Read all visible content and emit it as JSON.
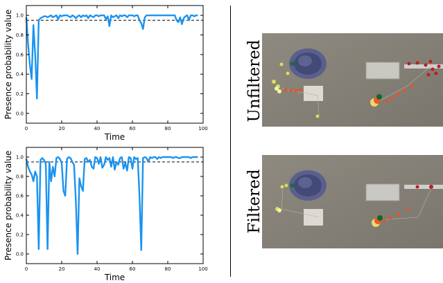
{
  "labels": {
    "unfiltered": "Unfiltered",
    "filtered": "Filtered"
  },
  "chart_data": [
    {
      "type": "line",
      "title": "",
      "xlabel": "Time",
      "ylabel": "Presence probability value",
      "xlim": [
        0,
        100
      ],
      "ylim": [
        -0.1,
        1.1
      ],
      "xticks": [
        0,
        20,
        40,
        60,
        80,
        100
      ],
      "yticks": [
        0.0,
        0.2,
        0.4,
        0.6,
        0.8,
        1.0
      ],
      "threshold": 0.95,
      "line_color": "#1a93f0",
      "threshold_color": "#000000",
      "series": [
        {
          "x": [
            0,
            1,
            2,
            3,
            4,
            5,
            6,
            7,
            8,
            9,
            10,
            11,
            12,
            13,
            14,
            15,
            16,
            17,
            18,
            19,
            20,
            21,
            22,
            23,
            24,
            25,
            26,
            27,
            28,
            29,
            30,
            31,
            32,
            33,
            34,
            35,
            36,
            37,
            38,
            39,
            40,
            41,
            42,
            43,
            44,
            45,
            46,
            47,
            48,
            49,
            50,
            51,
            52,
            53,
            54,
            55,
            56,
            57,
            58,
            59,
            60,
            61,
            62,
            63,
            64,
            65,
            66,
            67,
            68,
            69,
            70,
            71,
            72,
            73,
            74,
            75,
            76,
            77,
            78,
            79,
            80,
            81,
            82,
            83,
            84,
            85,
            86,
            87,
            88,
            89,
            90,
            91,
            92,
            93,
            94,
            95,
            96,
            97
          ],
          "y": [
            0.98,
            0.7,
            0.5,
            0.35,
            0.9,
            0.6,
            0.15,
            0.95,
            0.97,
            0.98,
            0.99,
            0.99,
            0.98,
            0.99,
            1.0,
            0.98,
            0.99,
            1.0,
            0.96,
            1.0,
            0.99,
            1.0,
            1.0,
            1.0,
            0.99,
            0.98,
            1.0,
            0.99,
            0.97,
            0.99,
            1.0,
            0.98,
            1.0,
            0.99,
            1.0,
            0.97,
            1.0,
            0.99,
            0.98,
            1.0,
            1.0,
            0.99,
            1.0,
            1.0,
            1.0,
            0.96,
            0.99,
            0.89,
            1.0,
            0.98,
            0.99,
            1.0,
            0.97,
            1.0,
            0.99,
            1.0,
            1.0,
            0.98,
            1.0,
            1.0,
            1.0,
            0.99,
            1.0,
            1.0,
            0.95,
            0.92,
            0.86,
            0.98,
            1.0,
            1.0,
            1.0,
            1.0,
            1.0,
            1.0,
            1.0,
            1.0,
            1.0,
            1.0,
            1.0,
            1.0,
            1.0,
            1.0,
            1.0,
            1.0,
            1.0,
            0.95,
            0.93,
            0.98,
            0.91,
            0.97,
            0.99,
            1.0,
            0.95,
            1.0,
            1.0,
            0.99,
            1.0,
            1.0
          ]
        }
      ]
    },
    {
      "type": "line",
      "title": "",
      "xlabel": "Time",
      "ylabel": "Presence probability value",
      "xlim": [
        0,
        100
      ],
      "ylim": [
        -0.1,
        1.1
      ],
      "xticks": [
        0,
        20,
        40,
        60,
        80,
        100
      ],
      "yticks": [
        0.0,
        0.2,
        0.4,
        0.6,
        0.8,
        1.0
      ],
      "threshold": 0.95,
      "line_color": "#1a93f0",
      "threshold_color": "#000000",
      "series": [
        {
          "x": [
            0,
            1,
            2,
            3,
            4,
            5,
            6,
            7,
            8,
            9,
            10,
            11,
            12,
            13,
            14,
            15,
            16,
            17,
            18,
            19,
            20,
            21,
            22,
            23,
            24,
            25,
            26,
            27,
            28,
            29,
            30,
            31,
            32,
            33,
            34,
            35,
            36,
            37,
            38,
            39,
            40,
            41,
            42,
            43,
            44,
            45,
            46,
            47,
            48,
            49,
            50,
            51,
            52,
            53,
            54,
            55,
            56,
            57,
            58,
            59,
            60,
            61,
            62,
            63,
            64,
            65,
            66,
            67,
            68,
            69,
            70,
            71,
            72,
            73,
            74,
            75,
            76,
            77,
            78,
            79,
            80,
            81,
            82,
            83,
            84,
            85,
            86,
            87,
            88,
            89,
            90,
            91,
            92,
            93,
            94,
            95,
            96,
            97
          ],
          "y": [
            0.98,
            0.9,
            0.85,
            0.82,
            0.75,
            0.85,
            0.8,
            0.05,
            0.97,
            0.99,
            0.97,
            0.93,
            0.05,
            0.95,
            0.75,
            0.9,
            0.8,
            0.99,
            1.0,
            0.98,
            0.94,
            0.65,
            0.6,
            0.98,
            1.0,
            0.99,
            0.95,
            0.92,
            0.55,
            0.0,
            0.78,
            0.7,
            0.65,
            0.98,
            0.99,
            0.95,
            0.97,
            0.9,
            0.88,
            1.0,
            0.99,
            0.93,
            1.0,
            0.89,
            0.92,
            1.0,
            0.97,
            0.99,
            0.9,
            1.0,
            0.87,
            0.95,
            0.92,
            0.99,
            1.0,
            0.88,
            0.94,
            0.86,
            1.0,
            0.99,
            0.88,
            1.0,
            0.98,
            0.99,
            0.6,
            0.04,
            0.99,
            1.0,
            0.99,
            0.95,
            1.0,
            0.99,
            1.0,
            1.0,
            0.98,
            1.0,
            0.99,
            1.0,
            1.0,
            1.0,
            1.0,
            1.0,
            1.0,
            0.99,
            1.0,
            1.0,
            0.99,
            0.99,
            1.0,
            1.0,
            1.0,
            1.0,
            1.0,
            0.99,
            1.0,
            1.0,
            1.0,
            1.0
          ]
        }
      ]
    }
  ]
}
